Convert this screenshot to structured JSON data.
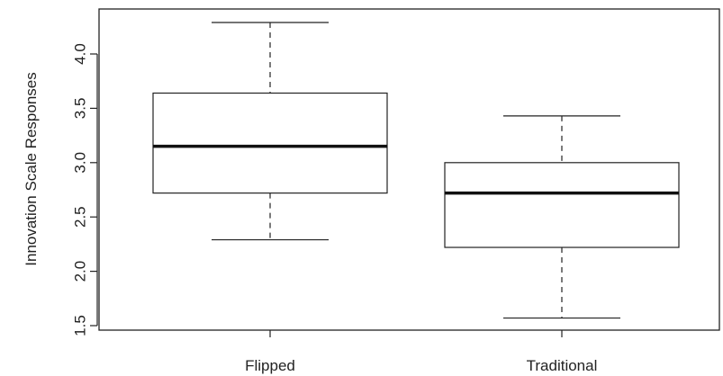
{
  "chart_data": {
    "type": "boxplot",
    "title": "",
    "xlabel": "",
    "ylabel": "Innovation Scale Responses",
    "ylim": [
      1.5,
      4.3
    ],
    "yticks": [
      "1.5",
      "2.0",
      "2.5",
      "3.0",
      "3.5",
      "4.0"
    ],
    "grid": false,
    "categories": [
      "Flipped",
      "Traditional"
    ],
    "boxes": [
      {
        "category": "Flipped",
        "whisker_low": 2.29,
        "q1": 2.72,
        "median": 3.15,
        "q3": 3.64,
        "whisker_high": 4.29
      },
      {
        "category": "Traditional",
        "whisker_low": 1.57,
        "q1": 2.22,
        "median": 2.72,
        "q3": 3.0,
        "whisker_high": 3.43
      }
    ]
  }
}
